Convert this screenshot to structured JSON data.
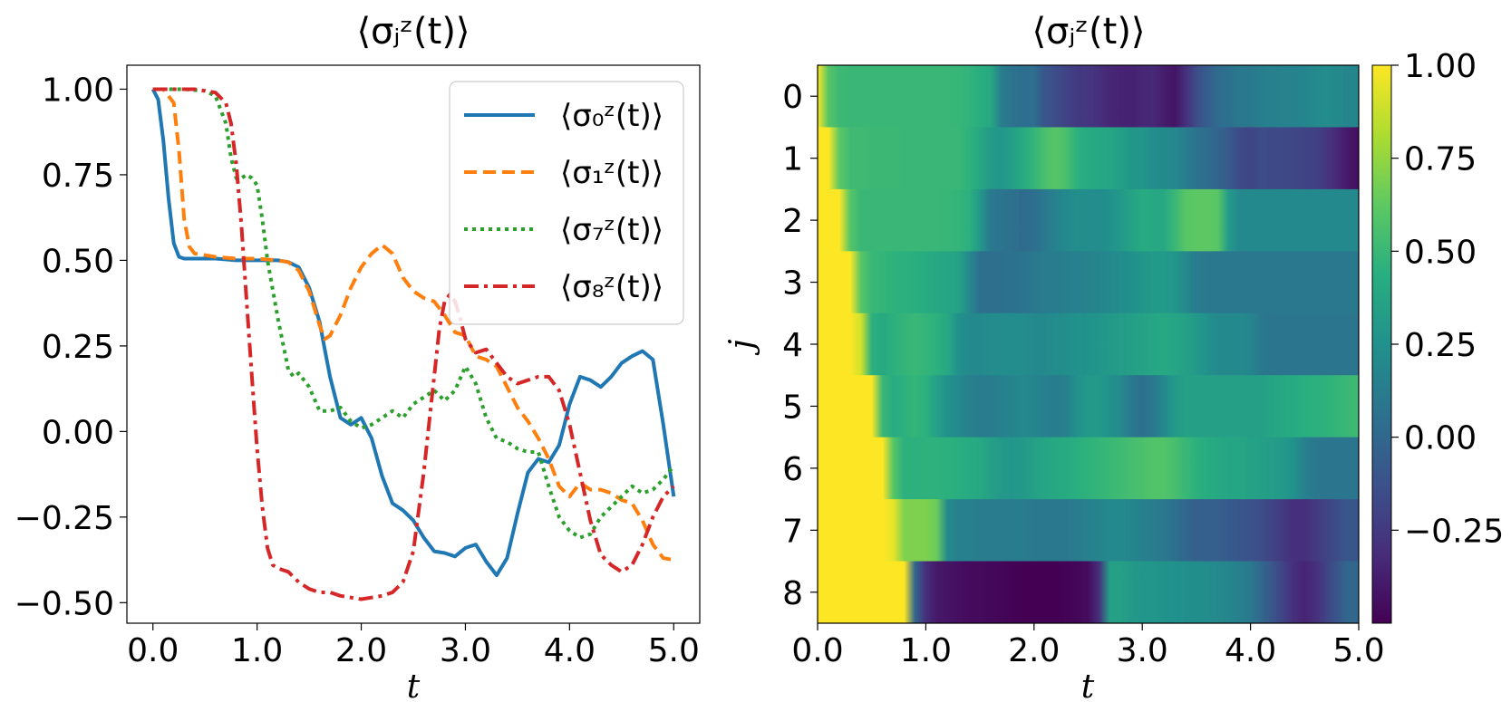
{
  "chart_data": [
    {
      "type": "line",
      "title": "⟨σⱼᶻ(t)⟩",
      "xlabel": "t",
      "ylabel": "",
      "xlim": [
        -0.25,
        5.25
      ],
      "ylim": [
        -0.56,
        1.07
      ],
      "xticks": [
        0,
        1,
        2,
        3,
        4,
        5
      ],
      "xtick_labels": [
        "0.0",
        "1.0",
        "2.0",
        "3.0",
        "4.0",
        "5.0"
      ],
      "yticks": [
        1.0,
        0.75,
        0.5,
        0.25,
        0.0,
        -0.25,
        -0.5
      ],
      "ytick_labels": [
        "1.00",
        "0.75",
        "0.50",
        "0.25",
        "0.00",
        "−0.25",
        "−0.50"
      ],
      "legend_position": "top-right",
      "series": [
        {
          "name": "⟨σ₀ᶻ(t)⟩",
          "color": "#1f77b4",
          "dash": "solid",
          "x": [
            0,
            0.05,
            0.1,
            0.15,
            0.2,
            0.25,
            0.3,
            0.4,
            0.6,
            0.8,
            1.0,
            1.2,
            1.3,
            1.4,
            1.5,
            1.6,
            1.65,
            1.7,
            1.8,
            1.9,
            2.0,
            2.1,
            2.2,
            2.3,
            2.4,
            2.5,
            2.6,
            2.7,
            2.8,
            2.9,
            3.0,
            3.1,
            3.2,
            3.3,
            3.4,
            3.5,
            3.6,
            3.7,
            3.8,
            3.9,
            4.0,
            4.1,
            4.2,
            4.3,
            4.4,
            4.5,
            4.6,
            4.7,
            4.8,
            4.9,
            5.0
          ],
          "values": [
            1.0,
            0.97,
            0.85,
            0.68,
            0.55,
            0.51,
            0.505,
            0.505,
            0.505,
            0.5,
            0.5,
            0.5,
            0.495,
            0.48,
            0.42,
            0.32,
            0.24,
            0.16,
            0.04,
            0.02,
            0.04,
            -0.02,
            -0.13,
            -0.21,
            -0.23,
            -0.26,
            -0.31,
            -0.35,
            -0.355,
            -0.365,
            -0.34,
            -0.33,
            -0.38,
            -0.42,
            -0.37,
            -0.24,
            -0.12,
            -0.08,
            -0.09,
            -0.04,
            0.08,
            0.16,
            0.15,
            0.13,
            0.16,
            0.2,
            0.22,
            0.235,
            0.21,
            0.02,
            -0.19
          ]
        },
        {
          "name": "⟨σ₁ᶻ(t)⟩",
          "color": "#ff7f0e",
          "dash": "dashed",
          "x": [
            0,
            0.1,
            0.2,
            0.25,
            0.3,
            0.35,
            0.4,
            0.5,
            0.6,
            0.8,
            1.0,
            1.2,
            1.3,
            1.4,
            1.5,
            1.6,
            1.65,
            1.7,
            1.8,
            1.9,
            2.0,
            2.1,
            2.2,
            2.3,
            2.4,
            2.5,
            2.6,
            2.7,
            2.8,
            2.9,
            3.0,
            3.1,
            3.2,
            3.3,
            3.4,
            3.5,
            3.6,
            3.7,
            3.8,
            3.9,
            4.0,
            4.1,
            4.2,
            4.3,
            4.4,
            4.5,
            4.6,
            4.7,
            4.8,
            4.9,
            5.0
          ],
          "values": [
            1.0,
            1.0,
            0.96,
            0.82,
            0.62,
            0.54,
            0.52,
            0.515,
            0.51,
            0.505,
            0.505,
            0.5,
            0.495,
            0.47,
            0.41,
            0.31,
            0.27,
            0.28,
            0.34,
            0.42,
            0.48,
            0.52,
            0.545,
            0.52,
            0.45,
            0.41,
            0.39,
            0.38,
            0.34,
            0.29,
            0.28,
            0.22,
            0.21,
            0.19,
            0.13,
            0.07,
            0.03,
            -0.02,
            -0.08,
            -0.16,
            -0.19,
            -0.15,
            -0.17,
            -0.17,
            -0.18,
            -0.2,
            -0.21,
            -0.26,
            -0.33,
            -0.37,
            -0.375
          ]
        },
        {
          "name": "⟨σ₇ᶻ(t)⟩",
          "color": "#2ca02c",
          "dash": "dotted",
          "x": [
            0,
            0.3,
            0.5,
            0.6,
            0.7,
            0.75,
            0.8,
            0.85,
            0.9,
            0.95,
            1.0,
            1.05,
            1.1,
            1.2,
            1.3,
            1.35,
            1.4,
            1.5,
            1.6,
            1.7,
            1.8,
            1.9,
            2.0,
            2.1,
            2.2,
            2.3,
            2.4,
            2.5,
            2.6,
            2.7,
            2.8,
            2.9,
            3.0,
            3.1,
            3.2,
            3.3,
            3.4,
            3.5,
            3.6,
            3.7,
            3.8,
            3.9,
            4.0,
            4.1,
            4.2,
            4.3,
            4.4,
            4.5,
            4.6,
            4.7,
            4.8,
            4.9,
            5.0
          ],
          "values": [
            1.0,
            1.0,
            0.995,
            0.98,
            0.9,
            0.8,
            0.74,
            0.74,
            0.75,
            0.74,
            0.72,
            0.62,
            0.5,
            0.33,
            0.18,
            0.16,
            0.17,
            0.13,
            0.06,
            0.06,
            0.07,
            0.03,
            0.01,
            0.02,
            0.04,
            0.06,
            0.04,
            0.08,
            0.1,
            0.12,
            0.09,
            0.12,
            0.19,
            0.14,
            0.04,
            -0.02,
            -0.03,
            -0.05,
            -0.06,
            -0.06,
            -0.16,
            -0.25,
            -0.29,
            -0.31,
            -0.3,
            -0.25,
            -0.22,
            -0.19,
            -0.16,
            -0.18,
            -0.17,
            -0.14,
            -0.1
          ]
        },
        {
          "name": "⟨σ₈ᶻ(t)⟩",
          "color": "#d62728",
          "dash": "dashdot",
          "x": [
            0,
            0.4,
            0.6,
            0.7,
            0.75,
            0.8,
            0.85,
            0.9,
            0.95,
            1.0,
            1.05,
            1.1,
            1.15,
            1.2,
            1.3,
            1.4,
            1.5,
            1.6,
            1.7,
            1.8,
            1.9,
            2.0,
            2.1,
            2.2,
            2.3,
            2.4,
            2.5,
            2.6,
            2.65,
            2.7,
            2.75,
            2.8,
            2.85,
            2.9,
            2.95,
            3.0,
            3.1,
            3.2,
            3.3,
            3.4,
            3.5,
            3.6,
            3.7,
            3.8,
            3.9,
            4.0,
            4.1,
            4.2,
            4.3,
            4.4,
            4.5,
            4.6,
            4.7,
            4.8,
            4.9,
            5.0
          ],
          "values": [
            1.0,
            1.0,
            0.99,
            0.96,
            0.9,
            0.78,
            0.6,
            0.38,
            0.16,
            -0.05,
            -0.22,
            -0.34,
            -0.39,
            -0.4,
            -0.41,
            -0.44,
            -0.46,
            -0.47,
            -0.47,
            -0.48,
            -0.485,
            -0.49,
            -0.485,
            -0.48,
            -0.47,
            -0.44,
            -0.35,
            -0.12,
            0.02,
            0.16,
            0.3,
            0.38,
            0.4,
            0.38,
            0.33,
            0.27,
            0.23,
            0.24,
            0.2,
            0.16,
            0.14,
            0.15,
            0.16,
            0.16,
            0.12,
            0.02,
            -0.12,
            -0.26,
            -0.36,
            -0.39,
            -0.41,
            -0.39,
            -0.33,
            -0.25,
            -0.19,
            -0.16
          ]
        }
      ]
    },
    {
      "type": "heatmap",
      "title": "⟨σⱼᶻ(t)⟩",
      "xlabel": "t",
      "ylabel": "j",
      "xlim": [
        0,
        5
      ],
      "xticks": [
        0,
        1,
        2,
        3,
        4,
        5
      ],
      "xtick_labels": [
        "0.0",
        "1.0",
        "2.0",
        "3.0",
        "4.0",
        "5.0"
      ],
      "y_categories": [
        "0",
        "1",
        "2",
        "3",
        "4",
        "5",
        "6",
        "7",
        "8"
      ],
      "colormap": "viridis",
      "vmin": -0.5,
      "vmax": 1.0,
      "colorbar_ticks": [
        1.0,
        0.75,
        0.5,
        0.25,
        0.0,
        -0.25
      ],
      "colorbar_tick_labels": [
        "1.00",
        "0.75",
        "0.50",
        "0.25",
        "0.00",
        "−0.25"
      ],
      "t_samples": [
        0.0,
        0.1,
        0.2,
        0.3,
        0.4,
        0.5,
        0.6,
        0.7,
        0.8,
        0.9,
        1.0,
        1.1,
        1.2,
        1.3,
        1.4,
        1.5,
        1.6,
        1.7,
        1.8,
        1.9,
        2.0,
        2.1,
        2.2,
        2.3,
        2.4,
        2.5,
        2.6,
        2.7,
        2.8,
        2.9,
        3.0,
        3.1,
        3.2,
        3.3,
        3.4,
        3.5,
        3.6,
        3.7,
        3.8,
        3.9,
        4.0,
        4.1,
        4.2,
        4.3,
        4.4,
        4.5,
        4.6,
        4.7,
        4.8,
        4.9,
        5.0
      ],
      "rows": [
        [
          1.0,
          0.6,
          0.51,
          0.5,
          0.5,
          0.5,
          0.5,
          0.5,
          0.5,
          0.5,
          0.5,
          0.5,
          0.5,
          0.49,
          0.47,
          0.44,
          0.4,
          0.12,
          0.07,
          0.04,
          0.04,
          -0.1,
          -0.15,
          -0.2,
          -0.25,
          -0.26,
          -0.3,
          -0.34,
          -0.35,
          -0.36,
          -0.34,
          -0.33,
          -0.38,
          -0.42,
          -0.3,
          -0.15,
          -0.06,
          0.02,
          0.05,
          0.1,
          0.1,
          0.14,
          0.15,
          0.16,
          0.16,
          0.18,
          0.2,
          0.22,
          0.21,
          0.18,
          0.18
        ],
        [
          1.0,
          1.0,
          0.62,
          0.52,
          0.52,
          0.51,
          0.51,
          0.51,
          0.5,
          0.5,
          0.5,
          0.5,
          0.5,
          0.5,
          0.46,
          0.4,
          0.31,
          0.28,
          0.34,
          0.42,
          0.48,
          0.56,
          0.6,
          0.55,
          0.45,
          0.41,
          0.39,
          0.38,
          0.34,
          0.29,
          0.28,
          0.22,
          0.21,
          0.19,
          0.13,
          0.07,
          0.03,
          -0.02,
          -0.08,
          -0.16,
          -0.19,
          -0.15,
          -0.17,
          -0.17,
          -0.18,
          -0.2,
          -0.21,
          -0.26,
          -0.33,
          -0.4,
          -0.44
        ],
        [
          1.0,
          1.0,
          1.0,
          0.6,
          0.5,
          0.5,
          0.5,
          0.5,
          0.5,
          0.5,
          0.5,
          0.5,
          0.49,
          0.48,
          0.45,
          0.3,
          0.1,
          0.08,
          0.05,
          0.02,
          0.04,
          0.1,
          0.16,
          0.2,
          0.24,
          0.22,
          0.22,
          0.25,
          0.3,
          0.36,
          0.42,
          0.4,
          0.4,
          0.5,
          0.6,
          0.62,
          0.62,
          0.6,
          0.3,
          0.2,
          0.2,
          0.2,
          0.2,
          0.2,
          0.2,
          0.2,
          0.2,
          0.2,
          0.2,
          0.2,
          0.2
        ],
        [
          1.0,
          1.0,
          1.0,
          1.0,
          0.6,
          0.5,
          0.48,
          0.46,
          0.45,
          0.44,
          0.42,
          0.4,
          0.38,
          0.36,
          0.2,
          0.05,
          0.04,
          0.05,
          0.06,
          0.07,
          0.1,
          0.12,
          0.12,
          0.14,
          0.15,
          0.16,
          0.18,
          0.2,
          0.22,
          0.25,
          0.28,
          0.3,
          0.3,
          0.28,
          0.2,
          0.12,
          0.1,
          0.1,
          0.1,
          0.1,
          0.1,
          0.1,
          0.1,
          0.1,
          0.1,
          0.1,
          0.1,
          0.1,
          0.1,
          0.1,
          0.1
        ],
        [
          1.0,
          1.0,
          1.0,
          1.0,
          0.9,
          0.45,
          0.4,
          0.45,
          0.48,
          0.5,
          0.48,
          0.45,
          0.4,
          0.25,
          0.2,
          0.2,
          0.22,
          0.22,
          0.22,
          0.22,
          0.2,
          0.2,
          0.22,
          0.24,
          0.25,
          0.26,
          0.28,
          0.3,
          0.32,
          0.34,
          0.36,
          0.38,
          0.4,
          0.38,
          0.35,
          0.3,
          0.25,
          0.2,
          0.2,
          0.2,
          0.18,
          0.1,
          0.08,
          0.08,
          0.08,
          0.08,
          0.08,
          0.08,
          0.08,
          0.08,
          0.08
        ],
        [
          1.0,
          1.0,
          1.0,
          1.0,
          1.0,
          1.0,
          0.5,
          0.42,
          0.45,
          0.48,
          0.45,
          0.35,
          0.25,
          0.2,
          0.15,
          0.12,
          0.12,
          0.15,
          0.18,
          0.2,
          0.18,
          0.15,
          0.12,
          0.15,
          0.25,
          0.3,
          0.3,
          0.25,
          0.2,
          0.1,
          0.05,
          0.1,
          0.2,
          0.3,
          0.35,
          0.35,
          0.35,
          0.35,
          0.35,
          0.35,
          0.35,
          0.35,
          0.38,
          0.4,
          0.42,
          0.44,
          0.45,
          0.46,
          0.48,
          0.5,
          0.52
        ],
        [
          1.0,
          1.0,
          1.0,
          1.0,
          1.0,
          1.0,
          1.0,
          0.6,
          0.45,
          0.45,
          0.46,
          0.46,
          0.45,
          0.44,
          0.42,
          0.4,
          0.35,
          0.3,
          0.28,
          0.3,
          0.35,
          0.38,
          0.4,
          0.42,
          0.44,
          0.46,
          0.48,
          0.5,
          0.52,
          0.54,
          0.56,
          0.58,
          0.58,
          0.55,
          0.5,
          0.45,
          0.42,
          0.4,
          0.38,
          0.38,
          0.36,
          0.34,
          0.32,
          0.3,
          0.25,
          0.15,
          0.1,
          0.08,
          0.08,
          0.08,
          0.08
        ],
        [
          1.0,
          1.0,
          1.0,
          1.0,
          1.0,
          1.0,
          1.0,
          0.95,
          0.7,
          0.7,
          0.7,
          0.65,
          0.2,
          0.15,
          0.15,
          0.12,
          0.12,
          0.12,
          0.12,
          0.12,
          0.1,
          0.1,
          0.1,
          0.1,
          0.12,
          0.15,
          0.18,
          0.2,
          0.2,
          0.18,
          0.15,
          0.12,
          0.1,
          0.05,
          0.0,
          -0.05,
          -0.05,
          -0.05,
          -0.08,
          -0.1,
          -0.12,
          -0.15,
          -0.2,
          -0.25,
          -0.3,
          -0.3,
          -0.25,
          -0.2,
          -0.15,
          -0.1,
          -0.1
        ],
        [
          1.0,
          1.0,
          1.0,
          1.0,
          1.0,
          1.0,
          1.0,
          1.0,
          1.0,
          0.0,
          -0.3,
          -0.4,
          -0.42,
          -0.44,
          -0.46,
          -0.46,
          -0.47,
          -0.48,
          -0.49,
          -0.5,
          -0.5,
          -0.5,
          -0.5,
          -0.49,
          -0.48,
          -0.45,
          -0.3,
          0.35,
          0.35,
          0.3,
          0.28,
          0.28,
          0.26,
          0.25,
          0.24,
          0.23,
          0.22,
          0.2,
          0.18,
          0.15,
          0.1,
          0.0,
          -0.1,
          -0.2,
          -0.3,
          -0.35,
          -0.3,
          -0.2,
          -0.1,
          0.0,
          0.0
        ]
      ]
    }
  ]
}
